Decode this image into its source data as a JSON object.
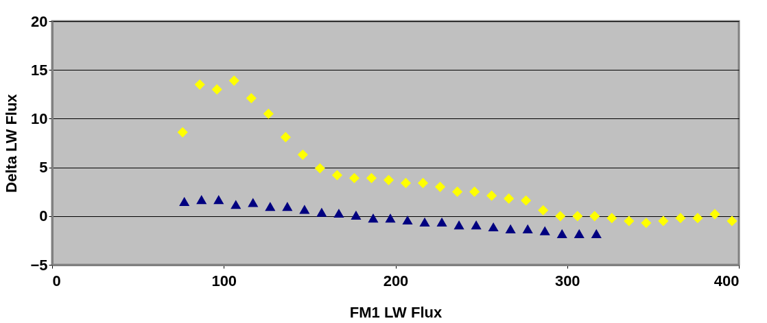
{
  "chart_data": {
    "type": "scatter",
    "xlabel": "FM1 LW Flux",
    "ylabel": "Delta LW Flux",
    "xlim": [
      0,
      400
    ],
    "ylim": [
      -5,
      20
    ],
    "xticks": [
      0,
      100,
      200,
      300,
      400
    ],
    "yticks": [
      -5,
      0,
      5,
      10,
      15,
      20
    ],
    "grid": "y",
    "legend": false,
    "series": [
      {
        "color": "#ffff00",
        "marker": "diamond",
        "x": [
          76,
          86,
          96,
          106,
          116,
          126,
          136,
          146,
          156,
          166,
          176,
          186,
          196,
          206,
          216,
          226,
          236,
          246,
          256,
          266,
          276,
          286,
          296,
          306,
          316,
          326,
          336,
          346,
          356,
          366,
          376,
          386,
          396
        ],
        "values": [
          8.6,
          13.5,
          13.0,
          13.9,
          12.1,
          10.5,
          8.1,
          6.3,
          4.9,
          4.2,
          3.9,
          3.9,
          3.7,
          3.4,
          3.4,
          3.0,
          2.5,
          2.5,
          2.1,
          1.8,
          1.6,
          0.6,
          0,
          0,
          0,
          -0.2,
          -0.5,
          -0.7,
          -0.5,
          -0.2,
          -0.2,
          0.2,
          -0.5
        ]
      },
      {
        "color": "#000080",
        "marker": "triangle",
        "x": [
          77,
          87,
          97,
          107,
          117,
          127,
          137,
          147,
          157,
          167,
          177,
          187,
          197,
          207,
          217,
          227,
          237,
          247,
          257,
          267,
          277,
          287,
          297,
          307,
          317
        ],
        "values": [
          1.5,
          1.7,
          1.7,
          1.2,
          1.4,
          1.0,
          1.0,
          0.7,
          0.4,
          0.3,
          0.1,
          -0.2,
          -0.2,
          -0.4,
          -0.6,
          -0.6,
          -0.9,
          -0.9,
          -1.1,
          -1.3,
          -1.3,
          -1.5,
          -1.8,
          -1.8,
          -1.8
        ]
      }
    ]
  }
}
